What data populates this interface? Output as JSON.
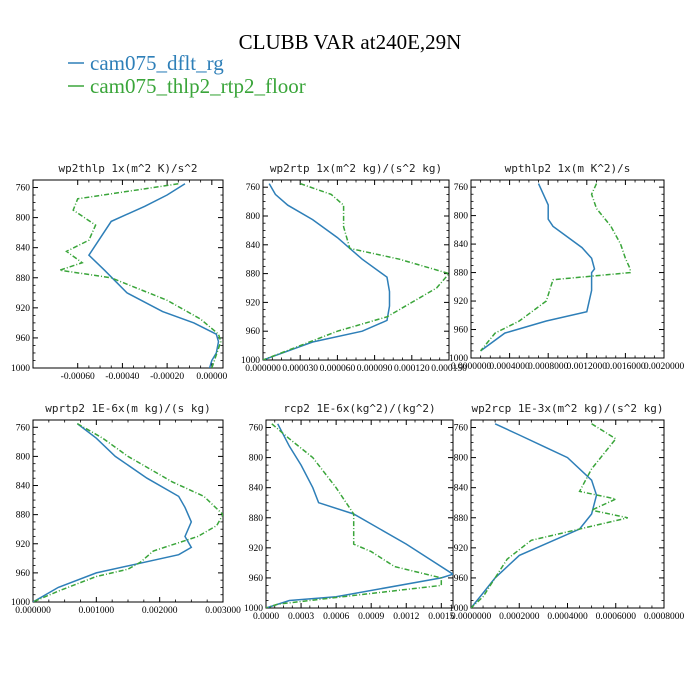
{
  "figure": {
    "title": "CLUBB VAR at240E,29N",
    "legend": [
      {
        "label": "cam075_dflt_rg",
        "color": "#2e7fb8",
        "dash": "solid"
      },
      {
        "label": "cam075_thlp2_rtp2_floor",
        "color": "#3aa53a",
        "dash": "dashed"
      }
    ]
  },
  "chart_data": [
    {
      "type": "line",
      "title": "wp2thlp  1x(m^2 K)/s^2",
      "xlim": [
        -0.0008,
        5e-05
      ],
      "xticks": [
        -0.0006,
        -0.0004,
        -0.0002,
        0.0
      ],
      "xtick_labels": [
        "-0.00060",
        "-0.00040",
        "-0.00020",
        "0.00000"
      ],
      "ylim": [
        1000,
        750
      ],
      "yticks": [
        760,
        800,
        840,
        880,
        920,
        960,
        1000
      ],
      "series": [
        {
          "name": "cam075_dflt_rg",
          "x": [
            -0.00012,
            -0.0002,
            -0.0003,
            -0.00045,
            -0.00055,
            -0.00048,
            -0.00038,
            -0.00022,
            -8e-05,
            2e-05,
            3e-05,
            2e-05,
            0.0,
            -1e-05
          ],
          "y": [
            755,
            770,
            785,
            805,
            850,
            870,
            900,
            925,
            940,
            955,
            965,
            980,
            990,
            1000
          ]
        },
        {
          "name": "cam075_thlp2_rtp2_floor",
          "x": [
            -0.00015,
            -0.0006,
            -0.00062,
            -0.00052,
            -0.00055,
            -0.00065,
            -0.00058,
            -0.00068,
            -0.00045,
            -0.0002,
            -5e-05,
            3e-05,
            4e-05,
            0.0
          ],
          "y": [
            755,
            775,
            790,
            810,
            830,
            845,
            860,
            870,
            880,
            910,
            935,
            955,
            965,
            1000
          ]
        }
      ]
    },
    {
      "type": "line",
      "title": "wp2rtp  1x(m^2 kg)/(s^2 kg)",
      "xlim": [
        0.0,
        0.00015
      ],
      "xticks": [
        0.0,
        3e-05,
        6e-05,
        9e-05,
        0.00012,
        0.00015
      ],
      "xtick_labels": [
        "0.000000",
        "0.000030",
        "0.000060",
        "0.000090",
        "0.000120",
        "0.000150"
      ],
      "ylim": [
        1000,
        750
      ],
      "yticks": [
        760,
        800,
        840,
        880,
        920,
        960,
        1000
      ],
      "series": [
        {
          "name": "cam075_dflt_rg",
          "x": [
            5e-06,
            1e-05,
            2e-05,
            4e-05,
            6e-05,
            8e-05,
            0.0001,
            0.000102,
            0.000102,
            0.0001,
            8e-05,
            4e-05,
            0.0
          ],
          "y": [
            755,
            770,
            785,
            805,
            830,
            860,
            885,
            905,
            925,
            945,
            960,
            975,
            1000
          ]
        },
        {
          "name": "cam075_thlp2_rtp2_floor",
          "x": [
            3e-05,
            5.5e-05,
            6.5e-05,
            6.5e-05,
            7e-05,
            0.00011,
            0.00015,
            0.00014,
            0.00012,
            0.0001,
            6e-05,
            0.0
          ],
          "y": [
            755,
            770,
            785,
            815,
            845,
            860,
            880,
            900,
            920,
            940,
            960,
            1000
          ]
        }
      ]
    },
    {
      "type": "line",
      "title": "wpthlp2  1x(m K^2)/s",
      "xlim": [
        0.0,
        0.002
      ],
      "xticks": [
        0.0,
        0.0004,
        0.0008,
        0.0012,
        0.0016,
        0.002
      ],
      "xtick_labels": [
        "0.0000000",
        "0.0004000",
        "0.0008000",
        "0.0012000",
        "0.0016000",
        "0.0020000"
      ],
      "ylim": [
        1000,
        750
      ],
      "yticks": [
        760,
        800,
        840,
        880,
        920,
        960,
        1000
      ],
      "series": [
        {
          "name": "cam075_dflt_rg",
          "x": [
            0.0007,
            0.0008,
            0.0008,
            0.00085,
            0.00115,
            0.00125,
            0.00128,
            0.00125,
            0.00125,
            0.0012,
            0.00078,
            0.00035,
            0.0001
          ],
          "y": [
            755,
            785,
            805,
            815,
            845,
            860,
            875,
            880,
            905,
            935,
            948,
            965,
            990
          ]
        },
        {
          "name": "cam075_thlp2_rtp2_floor",
          "x": [
            0.0013,
            0.00125,
            0.0013,
            0.00145,
            0.00155,
            0.0016,
            0.00165,
            0.00165,
            0.00085,
            0.00078,
            0.0005,
            0.00025,
            0.0001
          ],
          "y": [
            755,
            770,
            790,
            815,
            840,
            860,
            875,
            880,
            890,
            920,
            948,
            965,
            990
          ]
        }
      ]
    },
    {
      "type": "line",
      "title": "wprtp2  1E-6x(m kg)/(s kg)",
      "xlim": [
        0.0,
        0.003
      ],
      "xticks": [
        0.0,
        0.001,
        0.002,
        0.003
      ],
      "xtick_labels": [
        "0.000000",
        "0.001000",
        "0.002000",
        "0.003000"
      ],
      "ylim": [
        1000,
        750
      ],
      "yticks": [
        760,
        800,
        840,
        880,
        920,
        960,
        1000
      ],
      "series": [
        {
          "name": "cam075_dflt_rg",
          "x": [
            0.0007,
            0.001,
            0.0013,
            0.0018,
            0.0023,
            0.0024,
            0.0025,
            0.0024,
            0.0025,
            0.0023,
            0.001,
            0.0004,
            0.0
          ],
          "y": [
            755,
            775,
            800,
            830,
            855,
            870,
            890,
            910,
            925,
            935,
            960,
            980,
            1000
          ]
        },
        {
          "name": "cam075_thlp2_rtp2_floor",
          "x": [
            0.0007,
            0.0011,
            0.0015,
            0.0022,
            0.0027,
            0.003,
            0.0029,
            0.0026,
            0.0019,
            0.0017,
            0.0015,
            0.001,
            0.0004,
            0.0
          ],
          "y": [
            755,
            775,
            800,
            835,
            855,
            880,
            895,
            910,
            930,
            945,
            955,
            965,
            985,
            1000
          ]
        }
      ]
    },
    {
      "type": "line",
      "title": "rcp2  1E-6x(kg^2)/(kg^2)",
      "xlim": [
        0.0,
        0.0016
      ],
      "xticks": [
        0.0,
        0.0003,
        0.0006,
        0.0009,
        0.0012,
        0.0015
      ],
      "xtick_labels": [
        "0.0000",
        "0.0003",
        "0.0006",
        "0.0009",
        "0.0012",
        "0.0015"
      ],
      "ylim": [
        1000,
        750
      ],
      "yticks": [
        760,
        800,
        840,
        880,
        920,
        960,
        1000
      ],
      "series": [
        {
          "name": "cam075_dflt_rg",
          "x": [
            0.0001,
            0.0002,
            0.0003,
            0.0004,
            0.00045,
            0.00075,
            0.0012,
            0.0014,
            0.0016,
            0.0015,
            0.0006,
            0.0002,
            0.0
          ],
          "y": [
            755,
            785,
            810,
            840,
            860,
            875,
            915,
            935,
            955,
            960,
            985,
            990,
            1000
          ]
        },
        {
          "name": "cam075_thlp2_rtp2_floor",
          "x": [
            5e-05,
            0.0002,
            0.0004,
            0.0006,
            0.00075,
            0.00075,
            0.0009,
            0.0011,
            0.0015,
            0.0015,
            0.0001,
            0.0
          ],
          "y": [
            755,
            775,
            800,
            840,
            875,
            915,
            925,
            945,
            960,
            970,
            995,
            1000
          ]
        }
      ]
    },
    {
      "type": "line",
      "title": "wp2rcp  1E-3x(m^2 kg)/(s^2 kg)",
      "xlim": [
        0.0,
        0.0008
      ],
      "xticks": [
        0.0,
        0.0002,
        0.0004,
        0.0006,
        0.0008
      ],
      "xtick_labels": [
        "0.0000000",
        "0.0002000",
        "0.0004000",
        "0.0006000",
        "0.0008000"
      ],
      "ylim": [
        1000,
        750
      ],
      "yticks": [
        760,
        800,
        840,
        880,
        920,
        960,
        1000
      ],
      "series": [
        {
          "name": "cam075_dflt_rg",
          "x": [
            0.0001,
            0.0002,
            0.0003,
            0.0004,
            0.0005,
            0.00052,
            0.0005,
            0.00045,
            0.0002,
            0.0001,
            5e-05,
            0.0
          ],
          "y": [
            755,
            770,
            785,
            800,
            830,
            850,
            875,
            895,
            930,
            960,
            980,
            1000
          ]
        },
        {
          "name": "cam075_thlp2_rtp2_floor",
          "x": [
            0.0005,
            0.00055,
            0.0006,
            0.0005,
            0.00045,
            0.0006,
            0.0005,
            0.00065,
            0.00025,
            0.00015,
            0.0001,
            5e-05,
            0.0
          ],
          "y": [
            755,
            765,
            775,
            815,
            845,
            855,
            870,
            880,
            910,
            935,
            960,
            985,
            1000
          ]
        }
      ]
    }
  ]
}
